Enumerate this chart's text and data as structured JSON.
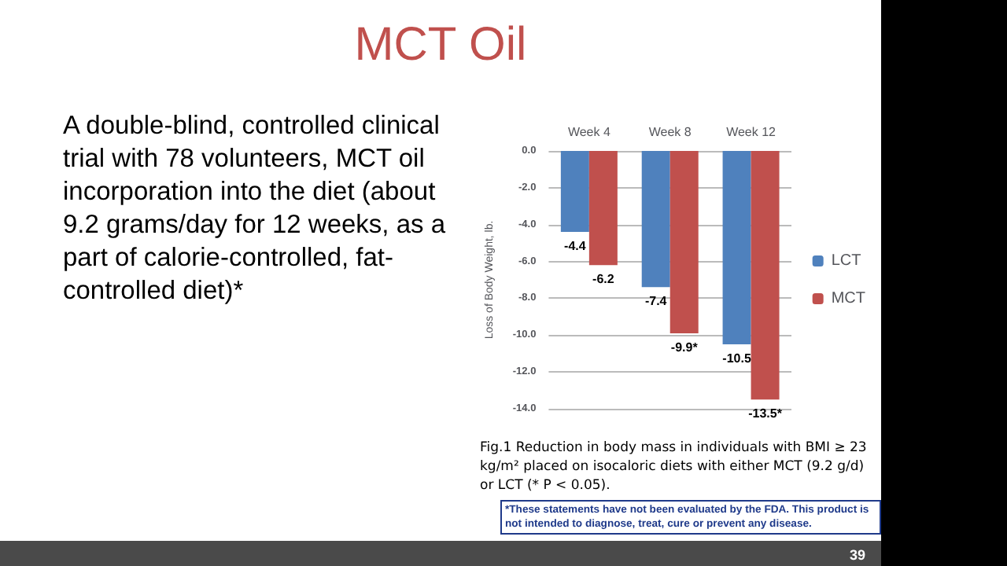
{
  "chart_data": {
    "type": "bar",
    "title": "MCT Oil",
    "ylabel": "Loss of Body Weight, lb.",
    "categories": [
      "Week 4",
      "Week 8",
      "Week 12"
    ],
    "series": [
      {
        "name": "LCT",
        "color": "#4f81bd",
        "values": [
          -4.4,
          -7.4,
          -10.5
        ],
        "value_labels": [
          "-4.4",
          "-7.4",
          "-10.5"
        ]
      },
      {
        "name": "MCT",
        "color": "#c0504d",
        "values": [
          -6.2,
          -9.9,
          -13.5
        ],
        "value_labels": [
          "-6.2",
          "-9.9*",
          "-13.5*"
        ]
      }
    ],
    "ylim": [
      -14,
      0
    ],
    "yticks": [
      {
        "value": -14,
        "label": "-14.0"
      },
      {
        "value": -12,
        "label": "-12.0"
      },
      {
        "value": -10,
        "label": "-10.0"
      },
      {
        "value": -8,
        "label": "-8.0"
      },
      {
        "value": -6,
        "label": "-6.0"
      },
      {
        "value": -4,
        "label": "-4.0"
      },
      {
        "value": -2,
        "label": "-2.0"
      },
      {
        "value": 0,
        "label": "0.0"
      }
    ],
    "grid": "y",
    "legend": "right",
    "annotations": [
      "A double-blind, controlled clinical trial with 78 volunteers, MCT oil incorporation into the diet (about 9.2 grams/day for 12 weeks, as a part of calorie-controlled, fat-controlled diet)*",
      "Fig.1 Reduction in body mass in individuals with BMI ≥ 23 kg/m² placed on isocaloric diets with either MCT (9.2 g/d) or LCT (* P < 0.05).",
      "*These statements have not been evaluated by the FDA.  This product is not intended to diagnose, treat, cure or prevent any disease.",
      "39"
    ]
  }
}
